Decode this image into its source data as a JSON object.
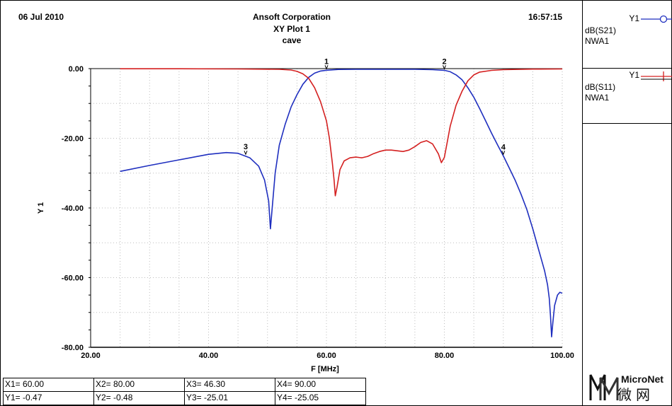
{
  "header": {
    "date": "06 Jul 2010",
    "company": "Ansoft Corporation",
    "plot_title": "XY Plot 1",
    "design": "cave",
    "time": "16:57:15"
  },
  "legend": [
    {
      "label": "Y1",
      "line1": "dB(S21)",
      "line2": "NWA1",
      "color": "#1f2fbf",
      "marker": "circle"
    },
    {
      "label": "Y1",
      "line1": "dB(S11)",
      "line2": "NWA1",
      "color": "#d42020",
      "marker": "plus"
    }
  ],
  "markers_table": [
    {
      "x": "X1= 60.00",
      "y": "Y1= -0.47"
    },
    {
      "x": "X2= 80.00",
      "y": "Y2= -0.48"
    },
    {
      "x": "X3= 46.30",
      "y": "Y3= -25.01"
    },
    {
      "x": "X4= 90.00",
      "y": "Y4= -25.05"
    }
  ],
  "logo": {
    "name": "MicroNet",
    "sub": "微网"
  },
  "chart_data": {
    "type": "line",
    "xlabel": "F [MHz]",
    "ylabel": "Y 1",
    "xlim": [
      20,
      100
    ],
    "ylim": [
      -80,
      0
    ],
    "x_ticks": [
      "20.00",
      "40.00",
      "60.00",
      "80.00",
      "100.00"
    ],
    "y_ticks": [
      "0.00",
      "-20.00",
      "-40.00",
      "-60.00",
      "-80.00"
    ],
    "grid": true,
    "series": [
      {
        "name": "dB(S21)",
        "color": "#1f2fbf",
        "points": [
          [
            25,
            -29.5
          ],
          [
            30,
            -27.8
          ],
          [
            35,
            -26.2
          ],
          [
            40,
            -24.6
          ],
          [
            43,
            -24.1
          ],
          [
            45,
            -24.3
          ],
          [
            47,
            -25.6
          ],
          [
            48.5,
            -28
          ],
          [
            49.5,
            -32
          ],
          [
            50.2,
            -38
          ],
          [
            50.5,
            -46
          ],
          [
            50.8,
            -40
          ],
          [
            51.3,
            -30
          ],
          [
            52,
            -22
          ],
          [
            53,
            -16
          ],
          [
            54,
            -11
          ],
          [
            55,
            -7.5
          ],
          [
            56,
            -4.5
          ],
          [
            57,
            -2.5
          ],
          [
            58,
            -1.3
          ],
          [
            59,
            -0.7
          ],
          [
            60,
            -0.47
          ],
          [
            62,
            -0.25
          ],
          [
            65,
            -0.2
          ],
          [
            70,
            -0.2
          ],
          [
            75,
            -0.2
          ],
          [
            78,
            -0.3
          ],
          [
            80,
            -0.48
          ],
          [
            81,
            -0.9
          ],
          [
            82,
            -1.8
          ],
          [
            83,
            -3.2
          ],
          [
            84,
            -5.5
          ],
          [
            85,
            -8.2
          ],
          [
            86,
            -11.5
          ],
          [
            87,
            -15
          ],
          [
            88,
            -18.5
          ],
          [
            89,
            -21.8
          ],
          [
            90,
            -25.05
          ],
          [
            91,
            -28.5
          ],
          [
            92,
            -32
          ],
          [
            93,
            -36
          ],
          [
            94,
            -40.5
          ],
          [
            95,
            -46
          ],
          [
            96,
            -52
          ],
          [
            97,
            -58
          ],
          [
            97.5,
            -62
          ],
          [
            97.8,
            -66
          ],
          [
            98,
            -71
          ],
          [
            98.2,
            -77
          ],
          [
            98.4,
            -73
          ],
          [
            98.7,
            -68
          ],
          [
            99.2,
            -65
          ],
          [
            99.6,
            -64.2
          ],
          [
            100,
            -64.5
          ]
        ]
      },
      {
        "name": "dB(S11)",
        "color": "#d42020",
        "points": [
          [
            25,
            -0.05
          ],
          [
            35,
            -0.05
          ],
          [
            45,
            -0.1
          ],
          [
            52,
            -0.2
          ],
          [
            54,
            -0.4
          ],
          [
            55,
            -0.8
          ],
          [
            56,
            -1.5
          ],
          [
            57,
            -2.8
          ],
          [
            58,
            -5.5
          ],
          [
            59,
            -9.5
          ],
          [
            60,
            -15
          ],
          [
            60.5,
            -20
          ],
          [
            61,
            -27
          ],
          [
            61.3,
            -32
          ],
          [
            61.5,
            -36.5
          ],
          [
            61.8,
            -34
          ],
          [
            62.3,
            -29
          ],
          [
            63,
            -26.5
          ],
          [
            64,
            -25.6
          ],
          [
            65,
            -25.4
          ],
          [
            66,
            -25.6
          ],
          [
            67,
            -25.2
          ],
          [
            68,
            -24.4
          ],
          [
            69,
            -23.8
          ],
          [
            70,
            -23.4
          ],
          [
            71,
            -23.4
          ],
          [
            72,
            -23.6
          ],
          [
            73,
            -23.8
          ],
          [
            74,
            -23.4
          ],
          [
            75,
            -22.4
          ],
          [
            76,
            -21.2
          ],
          [
            77,
            -20.7
          ],
          [
            78,
            -21.6
          ],
          [
            79,
            -24.5
          ],
          [
            79.5,
            -27
          ],
          [
            80,
            -25.5
          ],
          [
            80.5,
            -21
          ],
          [
            81,
            -16.5
          ],
          [
            82,
            -10.5
          ],
          [
            83,
            -6.5
          ],
          [
            84,
            -3.5
          ],
          [
            85,
            -1.8
          ],
          [
            86,
            -1
          ],
          [
            88,
            -0.5
          ],
          [
            90,
            -0.3
          ],
          [
            95,
            -0.15
          ],
          [
            100,
            -0.1
          ]
        ]
      }
    ],
    "markers": [
      {
        "label": "1",
        "x": 60.0,
        "y": -0.47
      },
      {
        "label": "2",
        "x": 80.0,
        "y": -0.48
      },
      {
        "label": "3",
        "x": 46.3,
        "y": -25.01
      },
      {
        "label": "4",
        "x": 90.0,
        "y": -25.05
      }
    ]
  }
}
